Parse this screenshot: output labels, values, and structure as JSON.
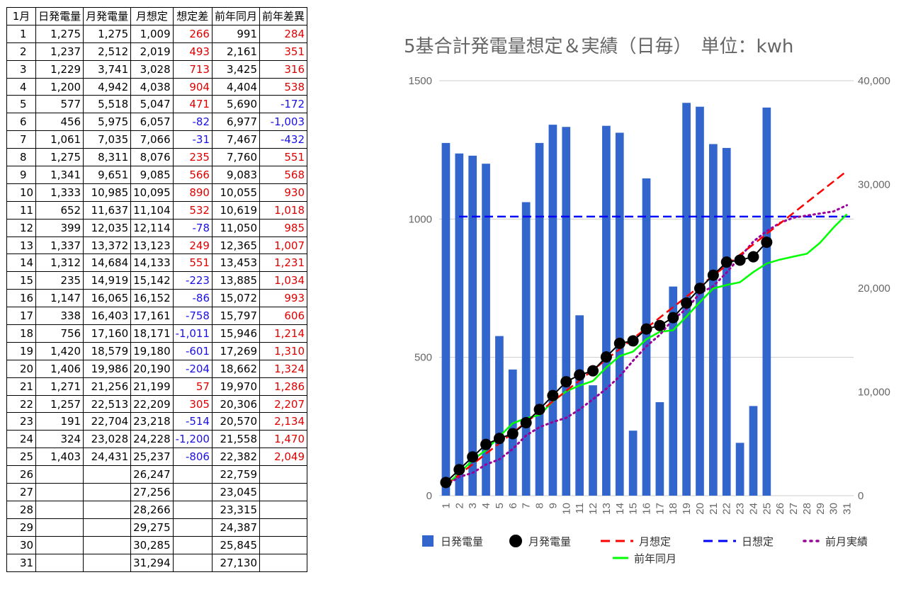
{
  "table": {
    "headers": [
      "1月",
      "日発電量",
      "月発電量",
      "月想定",
      "想定差",
      "前年同月",
      "前年差異"
    ],
    "rows": [
      [
        "1",
        "1,275",
        "1,275",
        "1,009",
        "266",
        "991",
        "284"
      ],
      [
        "2",
        "1,237",
        "2,512",
        "2,019",
        "493",
        "2,161",
        "351"
      ],
      [
        "3",
        "1,229",
        "3,741",
        "3,028",
        "713",
        "3,425",
        "316"
      ],
      [
        "4",
        "1,200",
        "4,942",
        "4,038",
        "904",
        "4,404",
        "538"
      ],
      [
        "5",
        "577",
        "5,518",
        "5,047",
        "471",
        "5,690",
        "-172"
      ],
      [
        "6",
        "456",
        "5,975",
        "6,057",
        "-82",
        "6,977",
        "-1,003"
      ],
      [
        "7",
        "1,061",
        "7,035",
        "7,066",
        "-31",
        "7,467",
        "-432"
      ],
      [
        "8",
        "1,275",
        "8,311",
        "8,076",
        "235",
        "7,760",
        "551"
      ],
      [
        "9",
        "1,341",
        "9,651",
        "9,085",
        "566",
        "9,083",
        "568"
      ],
      [
        "10",
        "1,333",
        "10,985",
        "10,095",
        "890",
        "10,055",
        "930"
      ],
      [
        "11",
        "652",
        "11,637",
        "11,104",
        "532",
        "10,619",
        "1,018"
      ],
      [
        "12",
        "399",
        "12,035",
        "12,114",
        "-78",
        "11,050",
        "985"
      ],
      [
        "13",
        "1,337",
        "13,372",
        "13,123",
        "249",
        "12,365",
        "1,007"
      ],
      [
        "14",
        "1,312",
        "14,684",
        "14,133",
        "551",
        "13,453",
        "1,231"
      ],
      [
        "15",
        "235",
        "14,919",
        "15,142",
        "-223",
        "13,885",
        "1,034"
      ],
      [
        "16",
        "1,147",
        "16,065",
        "16,152",
        "-86",
        "15,072",
        "993"
      ],
      [
        "17",
        "338",
        "16,403",
        "17,161",
        "-758",
        "15,797",
        "606"
      ],
      [
        "18",
        "756",
        "17,160",
        "18,171",
        "-1,011",
        "15,946",
        "1,214"
      ],
      [
        "19",
        "1,420",
        "18,579",
        "19,180",
        "-601",
        "17,269",
        "1,310"
      ],
      [
        "20",
        "1,406",
        "19,986",
        "20,190",
        "-204",
        "18,662",
        "1,324"
      ],
      [
        "21",
        "1,271",
        "21,256",
        "21,199",
        "57",
        "19,970",
        "1,286"
      ],
      [
        "22",
        "1,257",
        "22,513",
        "22,209",
        "305",
        "20,306",
        "2,207"
      ],
      [
        "23",
        "191",
        "22,704",
        "23,218",
        "-514",
        "20,570",
        "2,134"
      ],
      [
        "24",
        "324",
        "23,028",
        "24,228",
        "-1,200",
        "21,558",
        "1,470"
      ],
      [
        "25",
        "1,403",
        "24,431",
        "25,237",
        "-806",
        "22,382",
        "2,049"
      ],
      [
        "26",
        "",
        "",
        "26,247",
        "",
        "22,759",
        ""
      ],
      [
        "27",
        "",
        "",
        "27,256",
        "",
        "23,045",
        ""
      ],
      [
        "28",
        "",
        "",
        "28,266",
        "",
        "23,315",
        ""
      ],
      [
        "29",
        "",
        "",
        "29,275",
        "",
        "24,387",
        ""
      ],
      [
        "30",
        "",
        "",
        "30,285",
        "",
        "25,845",
        ""
      ],
      [
        "31",
        "",
        "",
        "31,294",
        "",
        "27,130",
        ""
      ]
    ]
  },
  "colors": {
    "bar": "#3366cc",
    "monthly": "#000000",
    "forecast": "#ff0000",
    "daily_forecast": "#0000ff",
    "prev_month": "#990099",
    "prev_year": "#00ff00",
    "positive": "#e00000",
    "negative": "#1a10e6"
  },
  "chart_data": {
    "type": "bar",
    "title": "5基合計発電量想定＆実績（日毎）　単位：kwh",
    "categories": [
      "1",
      "2",
      "3",
      "4",
      "5",
      "6",
      "7",
      "8",
      "9",
      "10",
      "11",
      "12",
      "13",
      "14",
      "15",
      "16",
      "17",
      "18",
      "19",
      "20",
      "21",
      "22",
      "23",
      "24",
      "25",
      "26",
      "27",
      "28",
      "29",
      "30",
      "31"
    ],
    "y_left": {
      "ylim": [
        0,
        1500
      ],
      "ticks": [
        "0",
        "500",
        "1000",
        "1500"
      ]
    },
    "y_right": {
      "ylim": [
        0,
        40000
      ],
      "ticks": [
        "0",
        "10,000",
        "20,000",
        "30,000",
        "40,000"
      ]
    },
    "series": [
      {
        "name": "日発電量",
        "kind": "bar",
        "axis": "left",
        "values": [
          1275,
          1237,
          1229,
          1200,
          577,
          456,
          1061,
          1275,
          1341,
          1333,
          652,
          399,
          1337,
          1312,
          235,
          1147,
          338,
          756,
          1420,
          1406,
          1271,
          1257,
          191,
          324,
          1403,
          null,
          null,
          null,
          null,
          null,
          null
        ]
      },
      {
        "name": "月発電量",
        "kind": "line-marker",
        "axis": "right",
        "values": [
          1275,
          2512,
          3741,
          4942,
          5518,
          5975,
          7035,
          8311,
          9651,
          10985,
          11637,
          12035,
          13372,
          14684,
          14919,
          16065,
          16403,
          17160,
          18579,
          19986,
          21256,
          22513,
          22704,
          23028,
          24431,
          null,
          null,
          null,
          null,
          null,
          null
        ]
      },
      {
        "name": "月想定",
        "kind": "dashed",
        "axis": "right",
        "values": [
          1009,
          2019,
          3028,
          4038,
          5047,
          6057,
          7066,
          8076,
          9085,
          10095,
          11104,
          12114,
          13123,
          14133,
          15142,
          16152,
          17161,
          18171,
          19180,
          20190,
          21199,
          22209,
          23218,
          24228,
          25237,
          26247,
          27256,
          28266,
          29275,
          30285,
          31294
        ]
      },
      {
        "name": "日想定",
        "kind": "dashed",
        "axis": "left",
        "values": [
          1009,
          1009,
          1009,
          1009,
          1009,
          1009,
          1009,
          1009,
          1009,
          1009,
          1009,
          1009,
          1009,
          1009,
          1009,
          1009,
          1009,
          1009,
          1009,
          1009,
          1009,
          1009,
          1009,
          1009,
          1009,
          1009,
          1009,
          1009,
          1009,
          1009,
          1009
        ]
      },
      {
        "name": "前月実績",
        "kind": "dotted",
        "axis": "right",
        "values": [
          1000,
          1800,
          2200,
          3000,
          3500,
          4500,
          5800,
          6600,
          7100,
          7500,
          8300,
          9300,
          10300,
          11500,
          13000,
          14400,
          15500,
          17000,
          18000,
          19500,
          20200,
          21500,
          23000,
          24500,
          25500,
          26300,
          26800,
          27000,
          27200,
          27400,
          28000
        ]
      },
      {
        "name": "前年同月",
        "kind": "line",
        "axis": "right",
        "values": [
          991,
          2161,
          3425,
          4404,
          5690,
          6977,
          7467,
          7760,
          9083,
          10055,
          10619,
          11050,
          12365,
          13453,
          13885,
          15072,
          15797,
          15946,
          17269,
          18662,
          19970,
          20306,
          20570,
          21558,
          22382,
          22759,
          23045,
          23315,
          24387,
          25845,
          27130
        ]
      }
    ],
    "legend": [
      "日発電量",
      "月発電量",
      "月想定",
      "日想定",
      "前月実績",
      "前年同月"
    ],
    "legend_position": "bottom",
    "grid": true
  }
}
